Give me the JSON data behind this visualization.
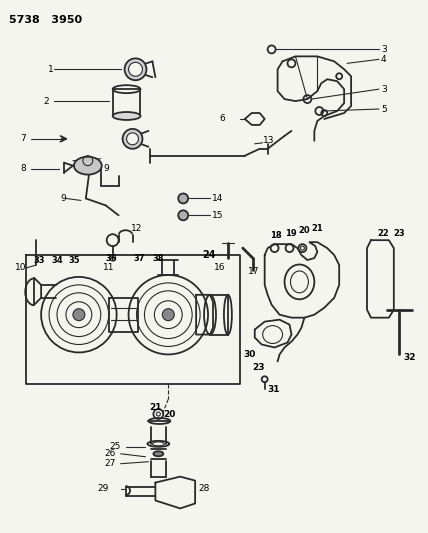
{
  "title1": "5738",
  "title2": "3950",
  "bg_color": "#f5f5f0",
  "line_color": "#2a2a2a",
  "label_color": "#000000",
  "figsize": [
    4.28,
    5.33
  ],
  "dpi": 100
}
